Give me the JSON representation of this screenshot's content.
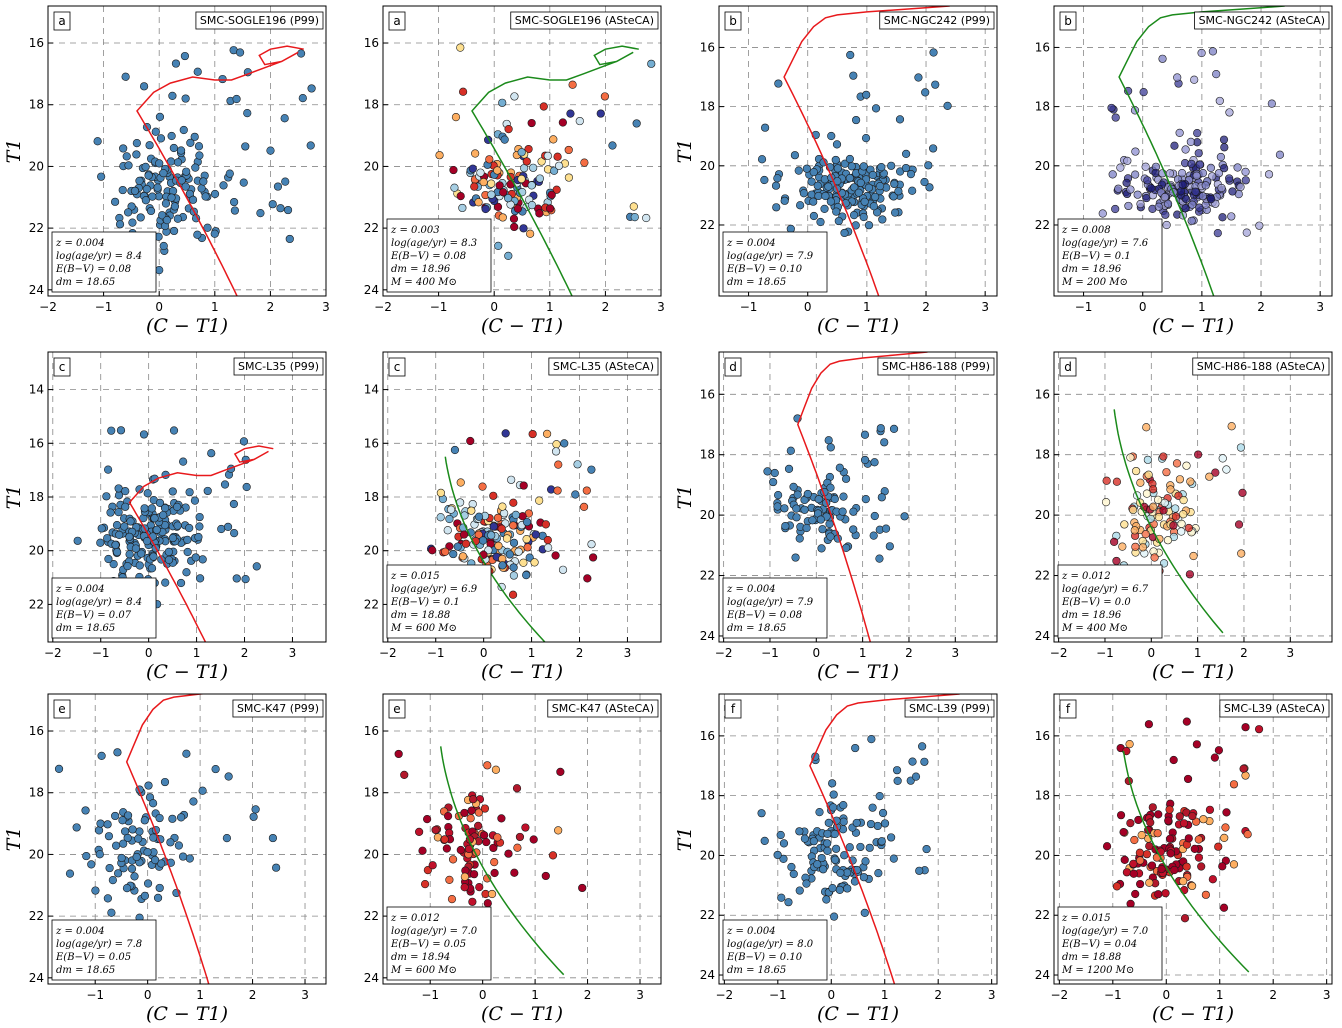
{
  "figure": {
    "xlabel": "(C − T1)",
    "ylabel": "T1"
  },
  "chart_data": [
    {
      "type": "scatter",
      "row": 0,
      "col": 0,
      "tag": "a",
      "title": "SMC-SOGLE196 (P99)",
      "source": "P99",
      "xlim": [
        -2,
        3
      ],
      "ylim": [
        24.2,
        14.8
      ],
      "xticks": [
        -2,
        -1,
        0,
        1,
        2,
        3
      ],
      "yticks": [
        16,
        18,
        20,
        22,
        24
      ],
      "info": [
        "z = 0.004",
        "log(age/yr) = 8.4",
        "E(B−V) = 0.08",
        "dm = 18.65"
      ],
      "iso": "old",
      "center": [
        0.1,
        20.8
      ],
      "spread": [
        0.5,
        1.2
      ],
      "n": 170,
      "palette": "blue",
      "seed": 11,
      "ydata": [
        16,
        24
      ],
      "xdata": [
        -0.8,
        2.9
      ]
    },
    {
      "type": "scatter",
      "row": 0,
      "col": 1,
      "tag": "a",
      "title": "SMC-SOGLE196 (ASteCA)",
      "source": "ASteCA",
      "xlim": [
        -2,
        3
      ],
      "ylim": [
        24.2,
        14.8
      ],
      "xticks": [
        -2,
        -1,
        0,
        1,
        2,
        3
      ],
      "yticks": [
        16,
        18,
        20,
        22,
        24
      ],
      "info": [
        "z = 0.003",
        "log(age/yr) = 8.3",
        "E(B−V) = 0.08",
        "dm = 18.96",
        "M = 400 M⊙"
      ],
      "iso": "old-green",
      "center": [
        0.3,
        20.6
      ],
      "spread": [
        0.5,
        1.1
      ],
      "n": 150,
      "palette": "mixed",
      "seed": 12,
      "ydata": [
        16,
        24
      ],
      "xdata": [
        -0.8,
        2.9
      ]
    },
    {
      "type": "scatter",
      "row": 0,
      "col": 2,
      "tag": "b",
      "title": "SMC-NGC242 (P99)",
      "source": "P99",
      "xlim": [
        -1.5,
        3.2
      ],
      "ylim": [
        24.4,
        14.6
      ],
      "xticks": [
        -1,
        0,
        1,
        2,
        3
      ],
      "yticks": [
        16,
        18,
        20,
        22
      ],
      "info": [
        "z = 0.004",
        "log(age/yr) = 7.9",
        "E(B−V) = 0.10",
        "dm = 18.65"
      ],
      "iso": "mid",
      "center": [
        0.7,
        20.8
      ],
      "spread": [
        0.5,
        0.7
      ],
      "n": 200,
      "palette": "blue",
      "seed": 21,
      "ydata": [
        16,
        24
      ],
      "xdata": [
        -0.8,
        2.4
      ]
    },
    {
      "type": "scatter",
      "row": 0,
      "col": 3,
      "tag": "b",
      "title": "SMC-NGC242 (ASteCA)",
      "source": "ASteCA",
      "xlim": [
        -1.5,
        3.2
      ],
      "ylim": [
        24.4,
        14.6
      ],
      "xticks": [
        -1,
        0,
        1,
        2,
        3
      ],
      "yticks": [
        16,
        18,
        20,
        22
      ],
      "info": [
        "z = 0.008",
        "log(age/yr) = 7.6",
        "E(B−V) = 0.1",
        "dm = 18.96",
        "M = 200 M⊙"
      ],
      "iso": "mid-green",
      "center": [
        0.7,
        20.8
      ],
      "spread": [
        0.5,
        0.7
      ],
      "n": 200,
      "palette": "purple",
      "seed": 22,
      "ydata": [
        16,
        24
      ],
      "xdata": [
        -0.8,
        2.4
      ]
    },
    {
      "type": "scatter",
      "row": 1,
      "col": 0,
      "tag": "c",
      "title": "SMC-L35 (P99)",
      "source": "P99",
      "xlim": [
        -2.1,
        3.7
      ],
      "ylim": [
        23.4,
        12.6
      ],
      "xticks": [
        -2,
        -1,
        0,
        1,
        2,
        3
      ],
      "yticks": [
        14,
        16,
        18,
        20,
        22
      ],
      "info": [
        "z = 0.004",
        "log(age/yr) = 8.4",
        "E(B−V) = 0.07",
        "dm = 18.65"
      ],
      "iso": "old-wide",
      "center": [
        0.0,
        19.6
      ],
      "spread": [
        0.5,
        1.0
      ],
      "n": 210,
      "palette": "blue",
      "seed": 31,
      "ydata": [
        15.5,
        22.5
      ],
      "xdata": [
        -0.9,
        2.3
      ]
    },
    {
      "type": "scatter",
      "row": 1,
      "col": 1,
      "tag": "c",
      "title": "SMC-L35 (ASteCA)",
      "source": "ASteCA",
      "xlim": [
        -2.1,
        3.7
      ],
      "ylim": [
        23.4,
        12.6
      ],
      "xticks": [
        -2,
        -1,
        0,
        1,
        2,
        3
      ],
      "yticks": [
        14,
        16,
        18,
        20,
        22
      ],
      "info": [
        "z = 0.015",
        "log(age/yr) = 6.9",
        "E(B−V) = 0.1",
        "dm = 18.88",
        "M = 600 M⊙"
      ],
      "iso": "young-wide",
      "center": [
        0.2,
        19.5
      ],
      "spread": [
        0.5,
        1.0
      ],
      "n": 190,
      "palette": "mixed",
      "seed": 32,
      "ydata": [
        15.5,
        22.5
      ],
      "xdata": [
        -0.9,
        2.3
      ]
    },
    {
      "type": "scatter",
      "row": 1,
      "col": 2,
      "tag": "d",
      "title": "SMC-H86-188 (P99)",
      "source": "P99",
      "xlim": [
        -2.1,
        3.9
      ],
      "ylim": [
        24.2,
        14.6
      ],
      "xticks": [
        -2,
        -1,
        0,
        1,
        2,
        3
      ],
      "yticks": [
        16,
        18,
        20,
        22,
        24
      ],
      "info": [
        "z = 0.004",
        "log(age/yr) = 7.9",
        "E(B−V) = 0.08",
        "dm = 18.65"
      ],
      "iso": "mid",
      "center": [
        -0.1,
        19.8
      ],
      "spread": [
        0.4,
        1.0
      ],
      "n": 110,
      "palette": "blue",
      "seed": 41,
      "ydata": [
        16.8,
        22.5
      ],
      "xdata": [
        -0.6,
        2.0
      ]
    },
    {
      "type": "scatter",
      "row": 1,
      "col": 3,
      "tag": "d",
      "title": "SMC-H86-188 (ASteCA)",
      "source": "ASteCA",
      "xlim": [
        -2.1,
        3.9
      ],
      "ylim": [
        24.2,
        14.6
      ],
      "xticks": [
        -2,
        -1,
        0,
        1,
        2,
        3
      ],
      "yticks": [
        16,
        18,
        20,
        22,
        24
      ],
      "info": [
        "z = 0.012",
        "log(age/yr) = 6.7",
        "E(B−V) = 0.0",
        "dm = 18.96",
        "M = 400 M⊙"
      ],
      "iso": "young",
      "center": [
        0.1,
        20.0
      ],
      "spread": [
        0.5,
        1.0
      ],
      "n": 120,
      "palette": "warm",
      "seed": 42,
      "ydata": [
        16.8,
        22.5
      ],
      "xdata": [
        -0.6,
        2.0
      ]
    },
    {
      "type": "scatter",
      "row": 2,
      "col": 0,
      "tag": "e",
      "title": "SMC-K47 (P99)",
      "source": "P99",
      "xlim": [
        -1.9,
        3.4
      ],
      "ylim": [
        24.2,
        14.8
      ],
      "xticks": [
        -1,
        0,
        1,
        2,
        3
      ],
      "yticks": [
        16,
        18,
        20,
        22,
        24
      ],
      "info": [
        "z = 0.004",
        "log(age/yr) = 7.8",
        "E(B−V) = 0.05",
        "dm = 18.65"
      ],
      "iso": "mid-k47",
      "center": [
        -0.2,
        19.8
      ],
      "spread": [
        0.4,
        1.2
      ],
      "n": 100,
      "palette": "blue",
      "seed": 51,
      "ydata": [
        16.5,
        22.5
      ],
      "xdata": [
        -1.9,
        2.7
      ]
    },
    {
      "type": "scatter",
      "row": 2,
      "col": 1,
      "tag": "e",
      "title": "SMC-K47 (ASteCA)",
      "source": "ASteCA",
      "xlim": [
        -1.9,
        3.4
      ],
      "ylim": [
        24.2,
        14.8
      ],
      "xticks": [
        -1,
        0,
        1,
        2,
        3
      ],
      "yticks": [
        16,
        18,
        20,
        22,
        24
      ],
      "info": [
        "z = 0.012",
        "log(age/yr) = 7.0",
        "E(B−V) = 0.05",
        "dm = 18.94",
        "M = 600 M⊙"
      ],
      "iso": "young",
      "center": [
        -0.2,
        19.8
      ],
      "spread": [
        0.4,
        1.2
      ],
      "n": 100,
      "palette": "red",
      "seed": 52,
      "ydata": [
        16.5,
        22.5
      ],
      "xdata": [
        -1.9,
        2.7
      ]
    },
    {
      "type": "scatter",
      "row": 2,
      "col": 2,
      "tag": "f",
      "title": "SMC-L39 (P99)",
      "source": "P99",
      "xlim": [
        -2.1,
        3.1
      ],
      "ylim": [
        24.3,
        14.6
      ],
      "xticks": [
        -2,
        -1,
        0,
        1,
        2,
        3
      ],
      "yticks": [
        16,
        18,
        20,
        22,
        24
      ],
      "info": [
        "z = 0.004",
        "log(age/yr) = 8.0",
        "E(B−V) = 0.10",
        "dm = 18.65"
      ],
      "iso": "mid",
      "center": [
        0.0,
        20.0
      ],
      "spread": [
        0.5,
        1.0
      ],
      "n": 130,
      "palette": "blue",
      "seed": 61,
      "ydata": [
        15.8,
        22.5
      ],
      "xdata": [
        -0.7,
        1.8
      ]
    },
    {
      "type": "scatter",
      "row": 2,
      "col": 3,
      "tag": "f",
      "title": "SMC-L39 (ASteCA)",
      "source": "ASteCA",
      "xlim": [
        -2.1,
        3.1
      ],
      "ylim": [
        24.3,
        14.6
      ],
      "xticks": [
        -2,
        -1,
        0,
        1,
        2,
        3
      ],
      "yticks": [
        16,
        18,
        20,
        22,
        24
      ],
      "info": [
        "z = 0.015",
        "log(age/yr) = 7.0",
        "E(B−V) = 0.04",
        "dm = 18.88",
        "M = 1200 M⊙"
      ],
      "iso": "young",
      "center": [
        0.0,
        19.9
      ],
      "spread": [
        0.5,
        1.0
      ],
      "n": 140,
      "palette": "red",
      "seed": 62,
      "ydata": [
        15.5,
        22.5
      ],
      "xdata": [
        -0.9,
        1.8
      ]
    }
  ]
}
